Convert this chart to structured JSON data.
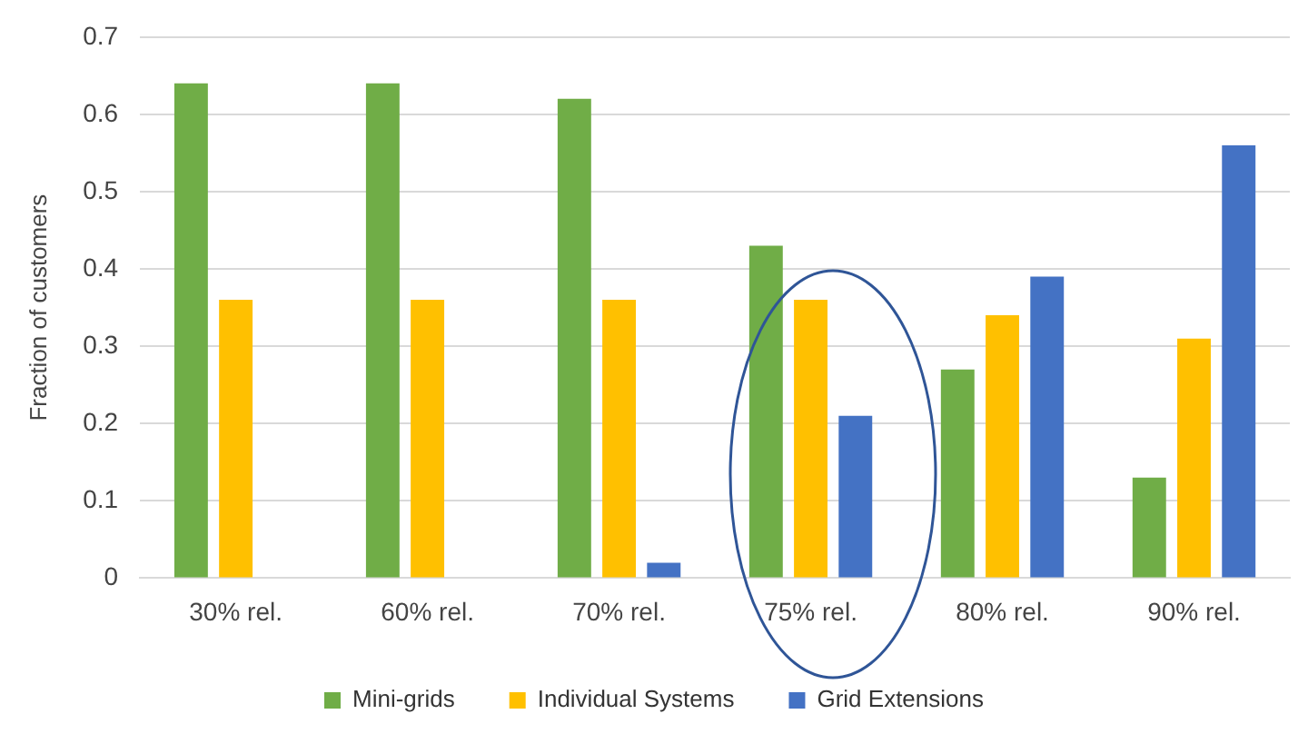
{
  "chart_data": {
    "type": "bar",
    "ylabel": "Fraction of customers",
    "categories": [
      "30% rel.",
      "60% rel.",
      "70% rel.",
      "75% rel.",
      "80% rel.",
      "90% rel."
    ],
    "series": [
      {
        "name": "Mini-grids",
        "color": "#70ad47",
        "values": [
          0.64,
          0.64,
          0.62,
          0.43,
          0.27,
          0.13
        ]
      },
      {
        "name": "Individual Systems",
        "color": "#ffc000",
        "values": [
          0.36,
          0.36,
          0.36,
          0.36,
          0.34,
          0.31
        ]
      },
      {
        "name": "Grid Extensions",
        "color": "#4472c4",
        "values": [
          0,
          0,
          0.02,
          0.21,
          0.39,
          0.56
        ]
      }
    ],
    "ylim": [
      0,
      0.7
    ],
    "yticks": [
      0,
      0.1,
      0.2,
      0.3,
      0.4,
      0.5,
      0.6,
      0.7
    ],
    "grid": "y",
    "legend": "bottom"
  }
}
